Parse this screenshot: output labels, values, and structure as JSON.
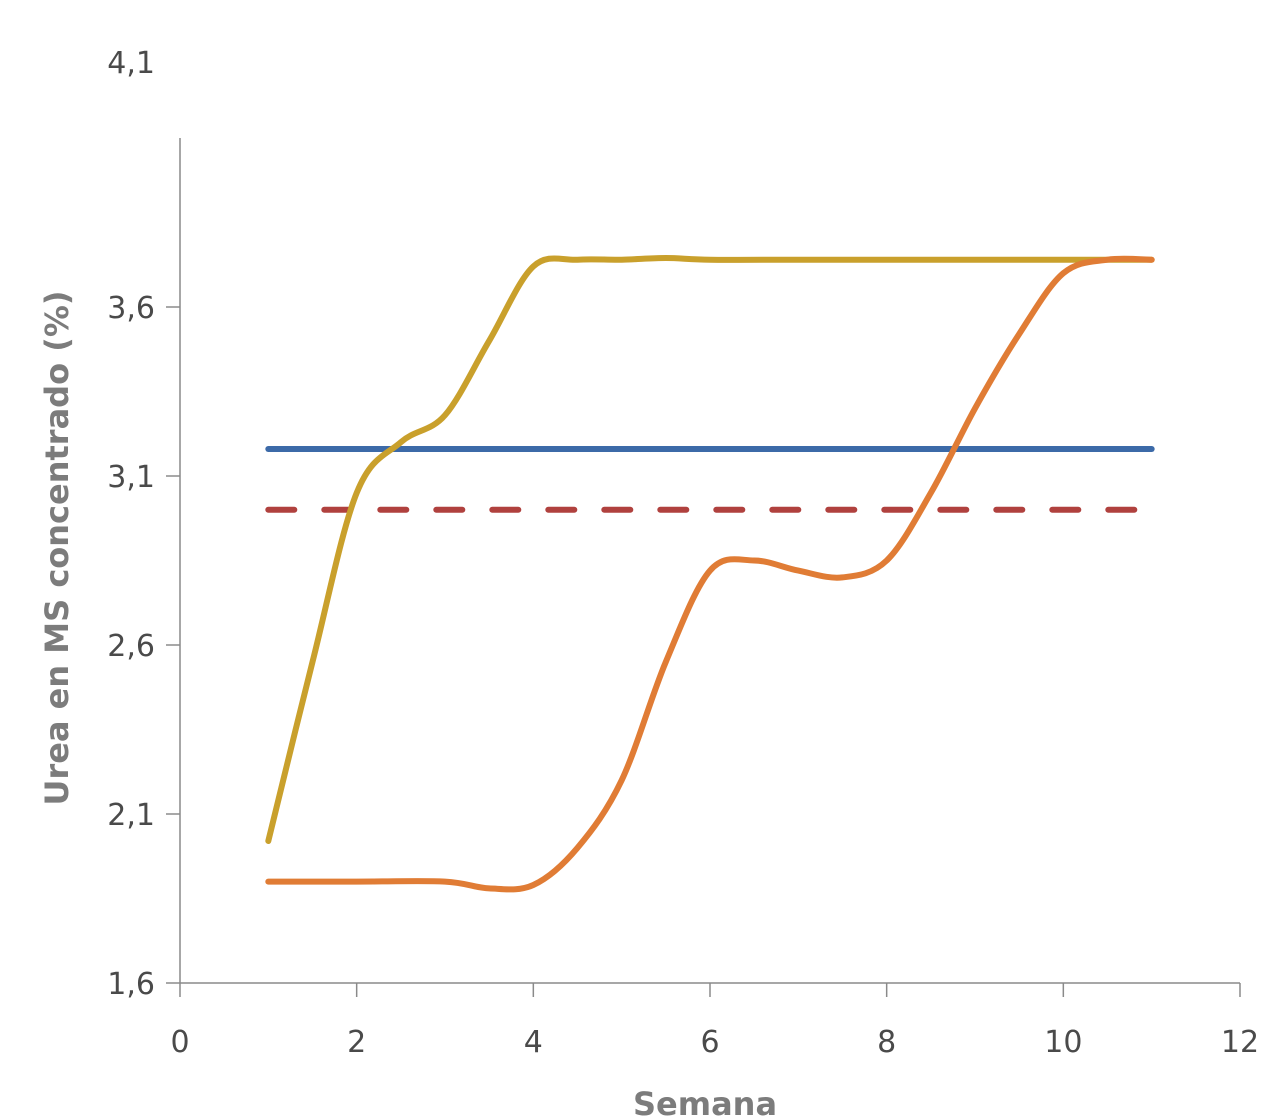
{
  "chart_data": {
    "type": "line",
    "xlabel": "Semana",
    "ylabel": "Urea en MS concentrado (%)",
    "xlim": [
      0,
      12
    ],
    "ylim": [
      1.6,
      4.1
    ],
    "x_ticks": [
      "0",
      "2",
      "4",
      "6",
      "8",
      "10",
      "12"
    ],
    "y_ticks": [
      "1,6",
      "2,1",
      "2,6",
      "3,1",
      "3,6",
      "4,1"
    ],
    "grid": false,
    "legend": "none",
    "series": [
      {
        "color": "#3c6aa8",
        "style": "solid",
        "x": [
          1,
          11
        ],
        "values": [
          3.18,
          3.18
        ]
      },
      {
        "color": "#b0413e",
        "style": "dashed",
        "x": [
          1,
          11
        ],
        "values": [
          3.0,
          3.0
        ]
      },
      {
        "color": "#c9a02c",
        "style": "solid",
        "x": [
          1,
          1.5,
          2,
          2.5,
          3,
          3.5,
          4,
          4.5,
          5,
          5.5,
          6,
          7,
          8,
          9,
          10,
          11
        ],
        "values": [
          2.02,
          2.55,
          3.05,
          3.2,
          3.28,
          3.5,
          3.72,
          3.74,
          3.74,
          3.745,
          3.74,
          3.74,
          3.74,
          3.74,
          3.74,
          3.74
        ]
      },
      {
        "color": "#e07c35",
        "style": "solid",
        "x": [
          1,
          2,
          3,
          3.5,
          4,
          4.5,
          5,
          5.5,
          6,
          6.5,
          7,
          7.5,
          8,
          8.5,
          9,
          9.5,
          10,
          10.5,
          11
        ],
        "values": [
          1.9,
          1.9,
          1.9,
          1.88,
          1.89,
          2.0,
          2.2,
          2.55,
          2.82,
          2.85,
          2.82,
          2.8,
          2.85,
          3.05,
          3.3,
          3.52,
          3.7,
          3.74,
          3.74
        ]
      }
    ]
  }
}
